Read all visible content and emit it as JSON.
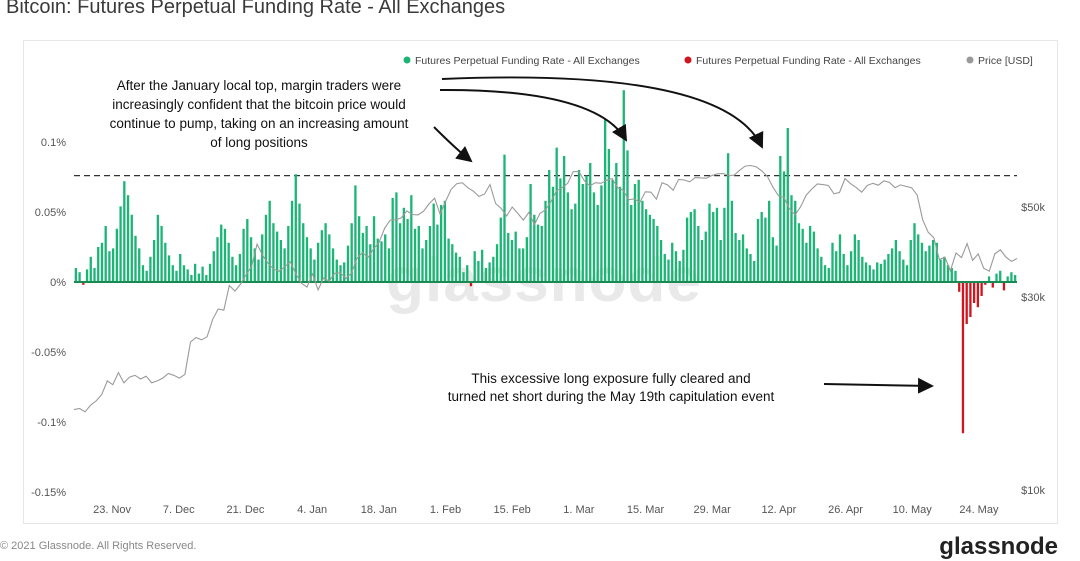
{
  "page": {
    "title": "Bitcoin: Futures Perpetual Funding Rate - All Exchanges",
    "copyright": "© 2021 Glassnode. All Rights Reserved.",
    "brand": "glassnode",
    "watermark": "glassnode"
  },
  "colors": {
    "positive": "#1bb576",
    "negative": "#d0151f",
    "price": "#9a9a9a",
    "axis": "#1a8a52",
    "reference_line": "#333333"
  },
  "chart_data": {
    "type": "bar",
    "title": "Bitcoin: Futures Perpetual Funding Rate - All Exchanges",
    "legend_position": "top-right",
    "grid": false,
    "legend": [
      {
        "label": "Futures Perpetual Funding Rate - All Exchanges",
        "color": "#1bb576"
      },
      {
        "label": "Futures Perpetual Funding Rate - All Exchanges",
        "color": "#d0151f"
      },
      {
        "label": "Price [USD]",
        "color": "#9a9a9a"
      }
    ],
    "x_axis": {
      "start": "2020-11-15",
      "end": "2021-06-01",
      "tick_labels": [
        "23. Nov",
        "7. Dec",
        "21. Dec",
        "4. Jan",
        "18. Jan",
        "1. Feb",
        "15. Feb",
        "1. Mar",
        "15. Mar",
        "29. Mar",
        "12. Apr",
        "26. Apr",
        "10. May",
        "24. May"
      ],
      "tick_dates": [
        "2020-11-23",
        "2020-12-07",
        "2020-12-21",
        "2021-01-04",
        "2021-01-18",
        "2021-02-01",
        "2021-02-15",
        "2021-03-01",
        "2021-03-15",
        "2021-03-29",
        "2021-04-12",
        "2021-04-26",
        "2021-05-10",
        "2021-05-24"
      ]
    },
    "y_left": {
      "range": [
        -0.0015,
        0.0015
      ],
      "tick_values": [
        0.001,
        0.0005,
        0,
        -0.0005,
        -0.001,
        -0.0015
      ],
      "tick_labels": [
        "0.1%",
        "0.05%",
        "0%",
        "-0.05%",
        "-0.1%",
        "-0.15%"
      ]
    },
    "y_right": {
      "scale": "log",
      "tick_values": [
        50000,
        30000,
        10000
      ],
      "tick_labels": [
        "$50k",
        "$30k",
        "$10k"
      ]
    },
    "reference_line": {
      "value": 0.00076,
      "style": "dashed"
    },
    "funding_rate": [
      0.0001,
      7e-05,
      -2e-05,
      9e-05,
      0.00018,
      0.0001,
      0.00025,
      0.00028,
      0.0004,
      0.00022,
      0.00024,
      0.00038,
      0.00054,
      0.00072,
      0.00062,
      0.00048,
      0.00033,
      0.00024,
      0.00012,
      8e-05,
      0.00018,
      0.0003,
      0.00048,
      0.0004,
      0.00028,
      0.00019,
      0.00012,
      8e-05,
      0.0002,
      0.00012,
      9e-05,
      5e-05,
      0.00013,
      6e-05,
      0.00011,
      5e-05,
      0.00013,
      0.00022,
      0.00032,
      0.00041,
      0.00038,
      0.00028,
      0.00018,
      0.00012,
      0.0002,
      0.00038,
      0.00045,
      0.00032,
      0.00024,
      0.00016,
      0.00034,
      0.00048,
      0.00058,
      0.00042,
      0.00036,
      0.0003,
      0.00024,
      0.0004,
      0.00058,
      0.00077,
      0.00056,
      0.00042,
      0.00032,
      0.00024,
      0.00016,
      0.00028,
      0.00037,
      0.00042,
      0.00034,
      0.00024,
      0.00016,
      0.00012,
      0.00014,
      0.00026,
      0.00042,
      0.00069,
      0.00047,
      0.00035,
      0.0004,
      0.00027,
      0.00047,
      0.00031,
      0.00029,
      0.00034,
      0.00024,
      0.0006,
      0.00064,
      0.00042,
      0.00053,
      0.00045,
      0.00062,
      0.00038,
      0.0004,
      0.00024,
      0.0003,
      0.0004,
      0.00056,
      0.00041,
      0.00055,
      0.00058,
      0.00031,
      0.00027,
      0.00021,
      0.00018,
      7e-05,
      0.00012,
      -3e-05,
      0.00022,
      0.00015,
      0.00023,
      0.0001,
      0.00014,
      0.00018,
      0.00027,
      0.00046,
      0.00091,
      0.00035,
      0.0003,
      0.00036,
      0.00024,
      0.00024,
      0.00032,
      0.0007,
      0.00048,
      0.00041,
      0.0004,
      0.00058,
      0.0008,
      0.00068,
      0.00096,
      0.00074,
      0.0009,
      0.00064,
      0.00052,
      0.00056,
      0.0008,
      0.0007,
      0.00076,
      0.00085,
      0.00064,
      0.00055,
      0.00069,
      0.00116,
      0.00095,
      0.00073,
      0.00085,
      0.00068,
      0.00137,
      0.00094,
      0.00055,
      0.0007,
      0.00073,
      0.00058,
      0.00052,
      0.00048,
      0.00045,
      0.0004,
      0.0003,
      0.0002,
      0.00016,
      0.00028,
      0.00022,
      0.00015,
      0.00023,
      0.00046,
      0.0005,
      0.00052,
      0.0004,
      0.0003,
      0.00036,
      0.00056,
      0.0005,
      0.00053,
      0.0003,
      0.00053,
      0.00092,
      0.00058,
      0.00035,
      0.0003,
      0.00034,
      0.00024,
      0.0002,
      0.00015,
      0.00045,
      0.0005,
      0.00046,
      0.00058,
      0.00032,
      0.00026,
      0.0009,
      0.00079,
      0.0011,
      0.00062,
      0.00058,
      0.00042,
      0.00038,
      0.00028,
      0.0004,
      0.00036,
      0.00024,
      0.00018,
      0.00012,
      0.0001,
      0.00028,
      0.00022,
      0.00034,
      0.0002,
      0.00012,
      0.00022,
      0.00034,
      0.0003,
      0.00018,
      0.00014,
      0.00012,
      9e-05,
      0.00014,
      0.00013,
      0.00016,
      0.0002,
      0.00024,
      0.0003,
      0.00022,
      0.00016,
      0.00012,
      0.0003,
      0.00042,
      0.00034,
      0.00028,
      0.00022,
      0.00026,
      0.0003,
      0.00028,
      0.00016,
      0.00018,
      0.00012,
      0.0001,
      8e-05,
      -7e-05,
      -0.00108,
      -0.0003,
      -0.00025,
      -0.00015,
      -0.00018,
      -0.0001,
      -2e-05,
      4e-05,
      -4e-05,
      6e-05,
      8e-05,
      -6e-05,
      4e-05,
      7e-05,
      5e-05
    ],
    "price_usd": [
      15800,
      15900,
      15600,
      16200,
      16600,
      17200,
      18600,
      18200,
      19500,
      18400,
      19000,
      19200,
      18800,
      19100,
      18400,
      18600,
      18900,
      19400,
      19200,
      18900,
      19300,
      23200,
      23800,
      23500,
      23900,
      26400,
      28000,
      27800,
      32000,
      31000,
      32200,
      34000,
      35600,
      40500,
      38000,
      36300,
      35100,
      34700,
      35600,
      36600,
      34200,
      32400,
      31700,
      34200,
      31200,
      33400,
      32800,
      34300,
      34400,
      33300,
      34300,
      37300,
      38600,
      37500,
      39400,
      40900,
      44300,
      46400,
      46500,
      47000,
      48900,
      47900,
      47800,
      48800,
      50900,
      52600,
      48000,
      51700,
      55300,
      57100,
      57400,
      55800,
      54700,
      53100,
      53800,
      56800,
      51000,
      49600,
      47500,
      50000,
      48200,
      46400,
      48500,
      45200,
      48200,
      49200,
      51600,
      54900,
      55800,
      57200,
      61100,
      61200,
      58100,
      56400,
      57400,
      57200,
      58200,
      58800,
      55800,
      55000,
      52100,
      52400,
      51300,
      54500,
      54400,
      52300,
      57400,
      56700,
      55000,
      58500,
      58300,
      57700,
      59100,
      59000,
      58900,
      59800,
      60400,
      60500,
      59800,
      59900,
      61600,
      63100,
      63300,
      62800,
      61400,
      59500,
      56000,
      53300,
      52800,
      49400,
      47800,
      50100,
      53500,
      55400,
      57000,
      56800,
      56500,
      53900,
      54300,
      58800,
      57100,
      55900,
      54400,
      56500,
      57200,
      56600,
      58000,
      57500,
      55800,
      56700,
      56200,
      55800,
      53500,
      46500,
      43300,
      42000,
      37100,
      37600,
      34800,
      38500,
      37500,
      40600,
      36900,
      38300,
      35300,
      34700,
      38300,
      39200,
      37600,
      36700,
      37300
    ]
  },
  "annotations": {
    "top_text": [
      "After the January local top, margin traders were",
      "increasingly confident that the bitcoin price would",
      "continue to pump, taking on an increasing amount",
      "of long positions"
    ],
    "bottom_text": [
      "This excessive long exposure fully cleared and",
      "turned net short during the May 19th capitulation event"
    ]
  }
}
